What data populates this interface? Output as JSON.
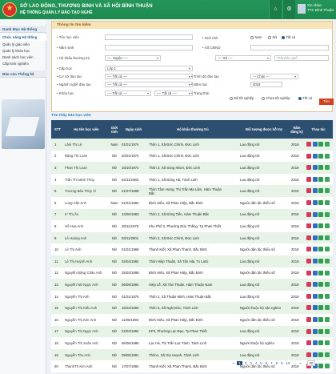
{
  "header": {
    "title1": "SỞ LAO ĐỘNG, THƯƠNG BINH VÀ XÃ HỘI BÌNH THUẬN",
    "title2": "HỆ THỐNG QUẢN LÝ ĐÀO TẠO NGHỀ",
    "user_label": "Xin chào:",
    "user_name": "TTC Bình Thuận",
    "home_icon": "⌂",
    "gear_icon": "⚙"
  },
  "sidebar": {
    "section1": "Danh Mục Hệ thống",
    "section2": "Chức năng Hệ thống",
    "items": [
      "Quản lý giáo viên",
      "Quản lý khóa học",
      "Danh sách học viên",
      "Cấp kinh nghiệm"
    ],
    "section3": "Báo cáo Thống kê"
  },
  "search": {
    "panel_title": "Thông tin tìm kiếm",
    "name_label": "Tên học viên",
    "year_label": "Năm sinh",
    "hh_label": "Hộ khẩu thường trú",
    "hh_value": "---- Huyện ----",
    "ward_value": "---- Xã ----",
    "village_placeholder": "Thôn/khu phố",
    "level_label": "Cấp học",
    "level_value": "Lớp 1",
    "place_label": "Cơ sở đào tạo",
    "place_value": "---- Tất cả ----",
    "major_label": "Ngành nghề đào tạo",
    "major_value": "---- Tất cả ----",
    "course_label": "Khóa học",
    "course_value": "---- Tất cả ----",
    "course_value2": "---- Tất cả ----",
    "gender_label": "Giới tính",
    "gender_opts": [
      "Nam",
      "Nữ",
      "Tất cả"
    ],
    "cmnd_label": "Số CMND",
    "edu_label": "Trình độ đào tạo",
    "edu_value": "--- Chọn ---",
    "yr_label": "Năm học",
    "yr_value": "2019",
    "status_label": "Trạng thái",
    "status_opts": [
      "Đã tốt nghiệp",
      "Chưa tốt nghiệp",
      "Tất cả"
    ],
    "search_button": "Tìm kiếm"
  },
  "table": {
    "title": "Tìm thấy 844 học viên",
    "headers": [
      "STT",
      "Họ tên học viên",
      "Giới tính",
      "Ngày sinh",
      "Hộ khẩu thường trú",
      "Đối tượng được hỗ trợ",
      "Năm đăng ký",
      "Thao tác"
    ],
    "rows": [
      [
        "1",
        "Lâm Thị Lệ",
        "Nam",
        "01/01/1974",
        "Thôn 1, Xã Đức Chính, Đức Linh",
        "Lao động nữ",
        "2019"
      ],
      [
        "2",
        "Đặng Thị Loan",
        "Nữ",
        "20/01/1974",
        "Thôn 1, Xã Đức Chính, Đức Linh",
        "Lao động nữ",
        "2019"
      ],
      [
        "3",
        "Phan Thị Loan",
        "Nữ",
        "15/10/1974",
        "Thôn 3, Xã Sùng Nhơn, Đức Linh",
        "Lao động nữ",
        "2019"
      ],
      [
        "4",
        "Trần Thị Minh Thùy",
        "Nữ",
        "02/11/1983",
        "Thôn 1, Xã Đông Hà, Tánh Linh",
        "Lao động nữ",
        "2019"
      ],
      [
        "5",
        "Trương Bảo Thùy Ái",
        "Nữ",
        "21/07/1998",
        "Thôn Tâm Hưng, Thị Trấn Ma Lâm, Hàm Thuận Bắc",
        "Lao động nữ",
        "2019"
      ],
      [
        "6",
        "Long Văn Anh",
        "Nam",
        "01/01/1992",
        "Bình Hiếu, Xã Phan Hiệp, Bắc Bình",
        "Người dân tộc thiểu số",
        "2019"
      ],
      [
        "7",
        "K' Thị Ấn",
        "Nữ",
        "12/06/1983",
        "Thôn 2, Xã Đông Tiến, Hàm Thuận Bắc",
        "Lao động nữ",
        "2019"
      ],
      [
        "8",
        "Hồ Hoa Anh",
        "Nữ",
        "28/11/1975",
        "Khu Phố 3, Phường Đức Thắng, Tp Phan Thiết",
        "Lao động nữ",
        "2019"
      ],
      [
        "9",
        "Lê Hoàng Anh",
        "Nữ",
        "03/11/2001",
        "Thôn 2, Xã Đức Chính, Đức Linh",
        "Lao động nữ",
        "2019"
      ],
      [
        "10",
        "Lê Thị Anh",
        "Nữ",
        "01/01/1968",
        "Thanh Kiết, Xã Phan Thanh, Bắc Bình",
        "Người dân tộc thiểu số",
        "2019"
      ],
      [
        "11",
        "Lê Thị Huỳnh Anh",
        "Nữ",
        "02/04/1984",
        "Thôn Hiệp Thuận, Xã Tân Hải, Tx LaGi",
        "Lao động nữ",
        "2019"
      ],
      [
        "12",
        "Nguyễn Đặng Châu Anh",
        "Nữ",
        "25/03/1998",
        "Bình Hiếu, Xã Phan Hiệp, Bắc Bình",
        "Người dân tộc thiểu số",
        "2019"
      ],
      [
        "13",
        "Nguyễn Nữ Ngọc Anh",
        "Nữ",
        "06/09/1994",
        "Hiệp Lễ, Xã Tân Thuận, Hàm Thuận Nam",
        "Lao động nữ",
        "2019"
      ],
      [
        "14",
        "Nguyễn Thị Anh",
        "Nữ",
        "01/01/1975",
        "Thôn 2, Xã Thuận Minh, Hàm Thuận Bắc",
        "Lao động nữ",
        "2019"
      ],
      [
        "15",
        "Nguyễn Thị Kiều Anh",
        "Nữ",
        "16/02/1992",
        "Thôn 6, Xã Nghị Đức, Tánh Linh",
        "Người thuộc hộ cận nghèo",
        "2019"
      ],
      [
        "16",
        "Nguyễn Thị Kim Anh",
        "Nữ",
        "11/06/1993",
        "Bình Hiếu, Xã Phan Hiệp, Bắc Bình",
        "Người dân tộc thiểu số",
        "2019"
      ],
      [
        "17",
        "Nguyễn Thị Ngọc Anh",
        "Nữ",
        "22/02/1994",
        "KP3, Phường Lạc Đạo, Tp Phan Thiết",
        "Lao động nữ",
        "2019"
      ],
      [
        "18",
        "Nguyễn Thị Xuân Anh",
        "Nữ",
        "06/06/1986",
        "Lạc Hà, Thị Trấn Lạc Tánh, Tánh Linh",
        "Người thuộc hộ nghèo",
        "2019"
      ],
      [
        "19",
        "Nguyễn Thu Anh",
        "Nữ",
        "09/05/1991",
        "Thôn1, Xã Gia Huynh, Tánh Linh",
        "Lao động nữ",
        "2019"
      ],
      [
        "20",
        "ThanhTh Kim Anh",
        "Nữ",
        "17/07/1992",
        "Thanh Kiết, Xã Phan Thanh, Bắc Bình",
        "Người dân tộc thiểu số",
        "2019"
      ]
    ]
  },
  "pager": {
    "prev": "«",
    "pages": [
      "1",
      "2",
      "3",
      "4",
      "5",
      "6",
      "7",
      "8",
      "9",
      "10"
    ],
    "more": "...",
    "next": "»",
    "size": "20"
  }
}
